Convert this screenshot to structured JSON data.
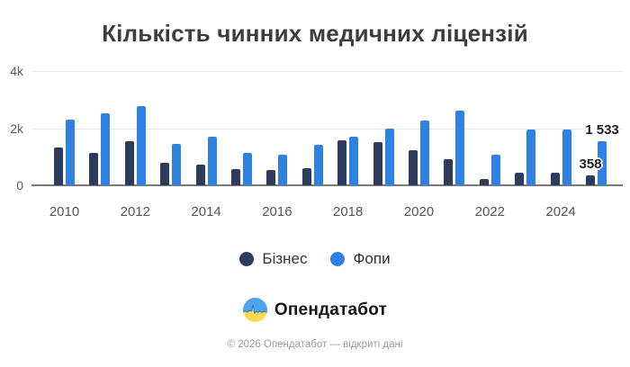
{
  "title": "Кількість чинних медичних ліцензій",
  "chart_data": {
    "type": "bar",
    "categories": [
      "2010",
      "2011",
      "2012",
      "2013",
      "2014",
      "2015",
      "2016",
      "2017",
      "2018",
      "2019",
      "2020",
      "2021",
      "2022",
      "2023",
      "2024",
      "2025"
    ],
    "series": [
      {
        "name": "Бізнес",
        "color": "#2d3c5c",
        "values": [
          1330,
          1130,
          1540,
          780,
          740,
          560,
          520,
          600,
          1560,
          1510,
          1230,
          920,
          235,
          440,
          440,
          358
        ]
      },
      {
        "name": "Фопи",
        "color": "#2f82e2",
        "values": [
          2300,
          2520,
          2780,
          1440,
          1690,
          1130,
          1060,
          1410,
          1710,
          1980,
          2270,
          2600,
          1080,
          1940,
          1945,
          1533
        ]
      }
    ],
    "title": "Кількість чинних медичних ліцензій",
    "xlabel": "",
    "ylabel": "",
    "ylim": [
      0,
      4000
    ],
    "grid": true,
    "legend_position": "bottom",
    "y_ticks": [
      {
        "label": "4k",
        "value": 4000
      },
      {
        "label": "2k",
        "value": 2000
      },
      {
        "label": "0",
        "value": 0
      }
    ],
    "x_ticks": [
      "2010",
      "2012",
      "2014",
      "2016",
      "2018",
      "2020",
      "2022",
      "2024"
    ],
    "annotations": [
      {
        "series_index": 1,
        "category_index": 15,
        "text": "1 533"
      },
      {
        "series_index": 0,
        "category_index": 15,
        "text": "358"
      }
    ]
  },
  "legend": {
    "items": [
      {
        "label": "Бізнес",
        "color": "#2d3c5c"
      },
      {
        "label": "Фопи",
        "color": "#2f82e2"
      }
    ]
  },
  "branding": {
    "logo_text": "Опендатабот"
  },
  "footer": {
    "copyright": "© 2026 Опендатабот — відкриті дані"
  },
  "colors": {
    "biznes": "#2d3c5c",
    "fopy": "#2f82e2",
    "gridline": "#e8e8e8",
    "axis_line": "#7a7a7a",
    "logo_blue": "#4fa5ec",
    "logo_yellow": "#ffd94e"
  }
}
